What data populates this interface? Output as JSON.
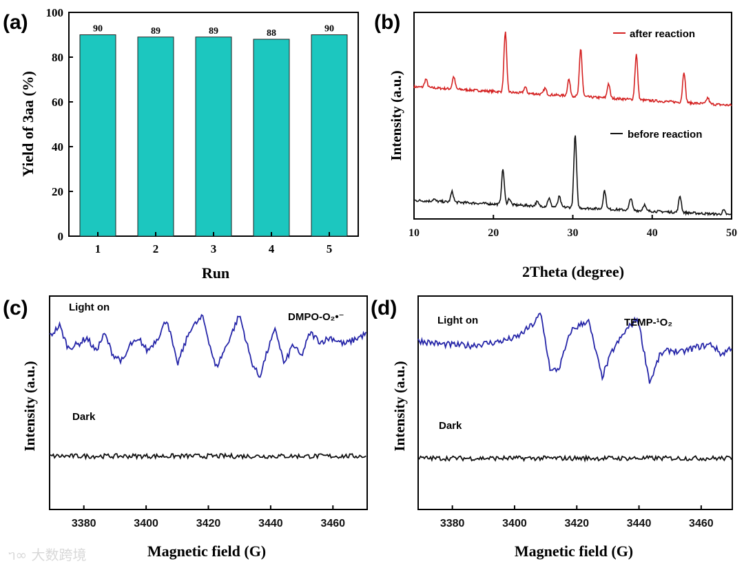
{
  "watermark": "大数跨境",
  "chart_data": [
    {
      "type": "bar",
      "panel_label": "(a)",
      "categories": [
        "1",
        "2",
        "3",
        "4",
        "5"
      ],
      "values": [
        90,
        89,
        89,
        88,
        90
      ],
      "data_labels": [
        "90",
        "89",
        "89",
        "88",
        "90"
      ],
      "xlabel": "Run",
      "ylabel": "Yield of 3aa (%)",
      "ylim": [
        0,
        100
      ],
      "yticks": [
        "0",
        "20",
        "40",
        "60",
        "80",
        "100"
      ],
      "color": "#1cc7bf"
    },
    {
      "type": "line",
      "panel_label": "(b)",
      "xlabel": "2Theta (degree)",
      "ylabel": "Intensity (a.u.)",
      "xlim": [
        10,
        50
      ],
      "xticks": [
        "10",
        "20",
        "30",
        "40",
        "50"
      ],
      "ylim": [
        0,
        100
      ],
      "legend": "top-right",
      "series": [
        {
          "name": "after reaction",
          "color": "#d42020",
          "baseline": [
            64,
            55
          ],
          "peaks": [
            [
              11.5,
              4
            ],
            [
              15,
              6
            ],
            [
              21.5,
              29
            ],
            [
              24,
              3
            ],
            [
              26.5,
              3
            ],
            [
              29.5,
              8
            ],
            [
              31,
              23
            ],
            [
              34.5,
              7
            ],
            [
              38,
              22
            ],
            [
              44,
              15
            ],
            [
              47,
              3
            ]
          ]
        },
        {
          "name": "before reaction",
          "color": "#111111",
          "baseline": [
            9,
            2
          ],
          "peaks": [
            [
              12.5,
              1
            ],
            [
              14.8,
              5
            ],
            [
              21.2,
              17
            ],
            [
              22,
              3
            ],
            [
              25.5,
              2
            ],
            [
              27,
              4
            ],
            [
              28.3,
              5
            ],
            [
              30.3,
              35
            ],
            [
              34,
              9
            ],
            [
              37.3,
              6
            ],
            [
              39,
              3
            ],
            [
              43.5,
              8
            ],
            [
              49,
              2
            ]
          ]
        }
      ]
    },
    {
      "type": "line",
      "panel_label": "(c)",
      "xlabel": "Magnetic field (G)",
      "ylabel": "Intensity (a.u.)",
      "xlim": [
        3369,
        3471
      ],
      "xticks": [
        "3380",
        "3400",
        "3420",
        "3440",
        "3460"
      ],
      "ylim": [
        0,
        100
      ],
      "annotation": "DMPO-O₂•⁻",
      "series": [
        {
          "name": "Light on",
          "color": "#2525a8",
          "points": [
            [
              3368.7,
              80.6
            ],
            [
              3372.2,
              86.1
            ],
            [
              3374.9,
              75.8
            ],
            [
              3378.2,
              77.4
            ],
            [
              3380.9,
              80.6
            ],
            [
              3383.8,
              74.2
            ],
            [
              3386.7,
              82.3
            ],
            [
              3389.3,
              72.6
            ],
            [
              3392.7,
              69.4
            ],
            [
              3394.9,
              77.4
            ],
            [
              3398.2,
              79
            ],
            [
              3400.4,
              74.2
            ],
            [
              3403.8,
              80.6
            ],
            [
              3406.7,
              89.4
            ],
            [
              3410,
              67.7
            ],
            [
              3414.2,
              84.5
            ],
            [
              3418.2,
              90.3
            ],
            [
              3422.4,
              66.1
            ],
            [
              3426,
              77.4
            ],
            [
              3430,
              91.3
            ],
            [
              3433.8,
              69.4
            ],
            [
              3436.4,
              61.9
            ],
            [
              3439.3,
              75.8
            ],
            [
              3441.6,
              84.5
            ],
            [
              3444.4,
              67.7
            ],
            [
              3447.1,
              77.4
            ],
            [
              3449.8,
              71.6
            ],
            [
              3452.7,
              82.9
            ],
            [
              3456,
              78.4
            ],
            [
              3459.3,
              80.6
            ],
            [
              3463.8,
              77.4
            ],
            [
              3468.2,
              80.6
            ],
            [
              3471.1,
              82.6
            ]
          ]
        },
        {
          "name": "Dark",
          "color": "#111111",
          "points": [
            [
              3369,
              25
            ],
            [
              3471,
              25
            ]
          ]
        }
      ]
    },
    {
      "type": "line",
      "panel_label": "(d)",
      "xlabel": "Magnetic field (G)",
      "ylabel": "Intensity (a.u.)",
      "xlim": [
        3369,
        3470
      ],
      "xticks": [
        "3380",
        "3400",
        "3420",
        "3440",
        "3460"
      ],
      "ylim": [
        0,
        100
      ],
      "annotation": "TEMP-¹O₂",
      "series": [
        {
          "name": "Light on",
          "color": "#2525a8",
          "points": [
            [
              3369.9,
              79
            ],
            [
              3376.5,
              77.4
            ],
            [
              3385.3,
              76.8
            ],
            [
              3394.1,
              78.4
            ],
            [
              3400.7,
              80.6
            ],
            [
              3404,
              84.5
            ],
            [
              3406.2,
              87.1
            ],
            [
              3408.4,
              91.9
            ],
            [
              3411.6,
              64.5
            ],
            [
              3414.3,
              66.1
            ],
            [
              3418.2,
              83.9
            ],
            [
              3423.7,
              88.7
            ],
            [
              3428.1,
              61.9
            ],
            [
              3431.4,
              74.2
            ],
            [
              3435.8,
              83.9
            ],
            [
              3439.6,
              89.7
            ],
            [
              3443.5,
              59.4
            ],
            [
              3446.8,
              72.6
            ],
            [
              3450.1,
              74.8
            ],
            [
              3453.4,
              73.5
            ],
            [
              3457.8,
              75.8
            ],
            [
              3463.3,
              77.4
            ],
            [
              3466.6,
              72.6
            ],
            [
              3469.5,
              75.8
            ]
          ]
        },
        {
          "name": "Dark",
          "color": "#111111",
          "points": [
            [
              3369,
              24
            ],
            [
              3470,
              24
            ]
          ]
        }
      ]
    }
  ]
}
